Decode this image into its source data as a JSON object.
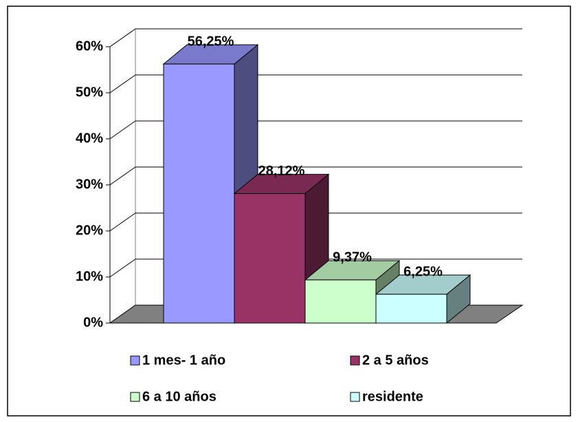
{
  "chart_data": {
    "type": "bar3d",
    "ylim": [
      0,
      60
    ],
    "yticks": [
      {
        "value": 0,
        "label": "0%"
      },
      {
        "value": 10,
        "label": "10%"
      },
      {
        "value": 20,
        "label": "20%"
      },
      {
        "value": 30,
        "label": "30%"
      },
      {
        "value": 40,
        "label": "40%"
      },
      {
        "value": 50,
        "label": "50%"
      },
      {
        "value": 60,
        "label": "60%"
      }
    ],
    "grid": true,
    "legend": "bottom",
    "series": [
      {
        "name": "1 mes- 1 año",
        "color": "#9999ff",
        "values": [
          56.25
        ],
        "value_labels": [
          "56,25%"
        ]
      },
      {
        "name": "2 a 5 años",
        "color": "#993366",
        "values": [
          28.12
        ],
        "value_labels": [
          "28,12%"
        ]
      },
      {
        "name": "6 a 10 años",
        "color": "#ccffcc",
        "values": [
          9.37
        ],
        "value_labels": [
          "9,37%"
        ]
      },
      {
        "name": "residente",
        "color": "#ccffff",
        "values": [
          6.25
        ],
        "value_labels": [
          "6,25%"
        ]
      }
    ]
  }
}
